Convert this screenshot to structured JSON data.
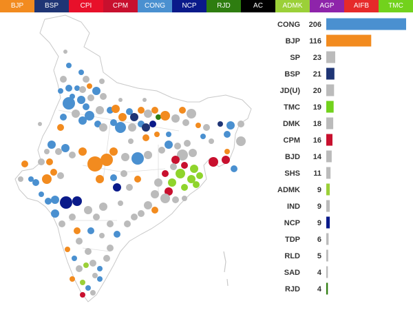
{
  "legend": [
    {
      "label": "BJP",
      "color": "#f28b1f"
    },
    {
      "label": "BSP",
      "color": "#1f3575"
    },
    {
      "label": "CPI",
      "color": "#e8102a"
    },
    {
      "label": "CPM",
      "color": "#c8102e"
    },
    {
      "label": "CONG",
      "color": "#4a90d0"
    },
    {
      "label": "NCP",
      "color": "#0a1a8a"
    },
    {
      "label": "RJD",
      "color": "#2e7d10"
    },
    {
      "label": "AC",
      "color": "#000000"
    },
    {
      "label": "ADMK",
      "color": "#9bd038"
    },
    {
      "label": "AGP",
      "color": "#8e24aa"
    },
    {
      "label": "AIFB",
      "color": "#e62a2a"
    },
    {
      "label": "TMC",
      "color": "#72d21c"
    }
  ],
  "chart_data": {
    "type": "bar",
    "categories": [
      "CONG",
      "BJP",
      "SP",
      "BSP",
      "JD(U)",
      "TMC",
      "DMK",
      "CPM",
      "BJD",
      "SHS",
      "ADMK",
      "IND",
      "NCP",
      "TDP",
      "RLD",
      "SAD",
      "RJD"
    ],
    "values": [
      206,
      116,
      23,
      21,
      20,
      19,
      18,
      16,
      14,
      11,
      9,
      9,
      9,
      6,
      5,
      4,
      4
    ],
    "colors": [
      "#4a90d0",
      "#f28b1f",
      "#bbbbbb",
      "#1f3575",
      "#bbbbbb",
      "#72d21c",
      "#bbbbbb",
      "#c8102e",
      "#bbbbbb",
      "#bbbbbb",
      "#9bd038",
      "#bbbbbb",
      "#0a1a8a",
      "#bbbbbb",
      "#bbbbbb",
      "#bbbbbb",
      "#2e7d10"
    ],
    "title": "",
    "xlabel": "",
    "ylabel": "",
    "xlim": [
      0,
      206
    ]
  }
}
